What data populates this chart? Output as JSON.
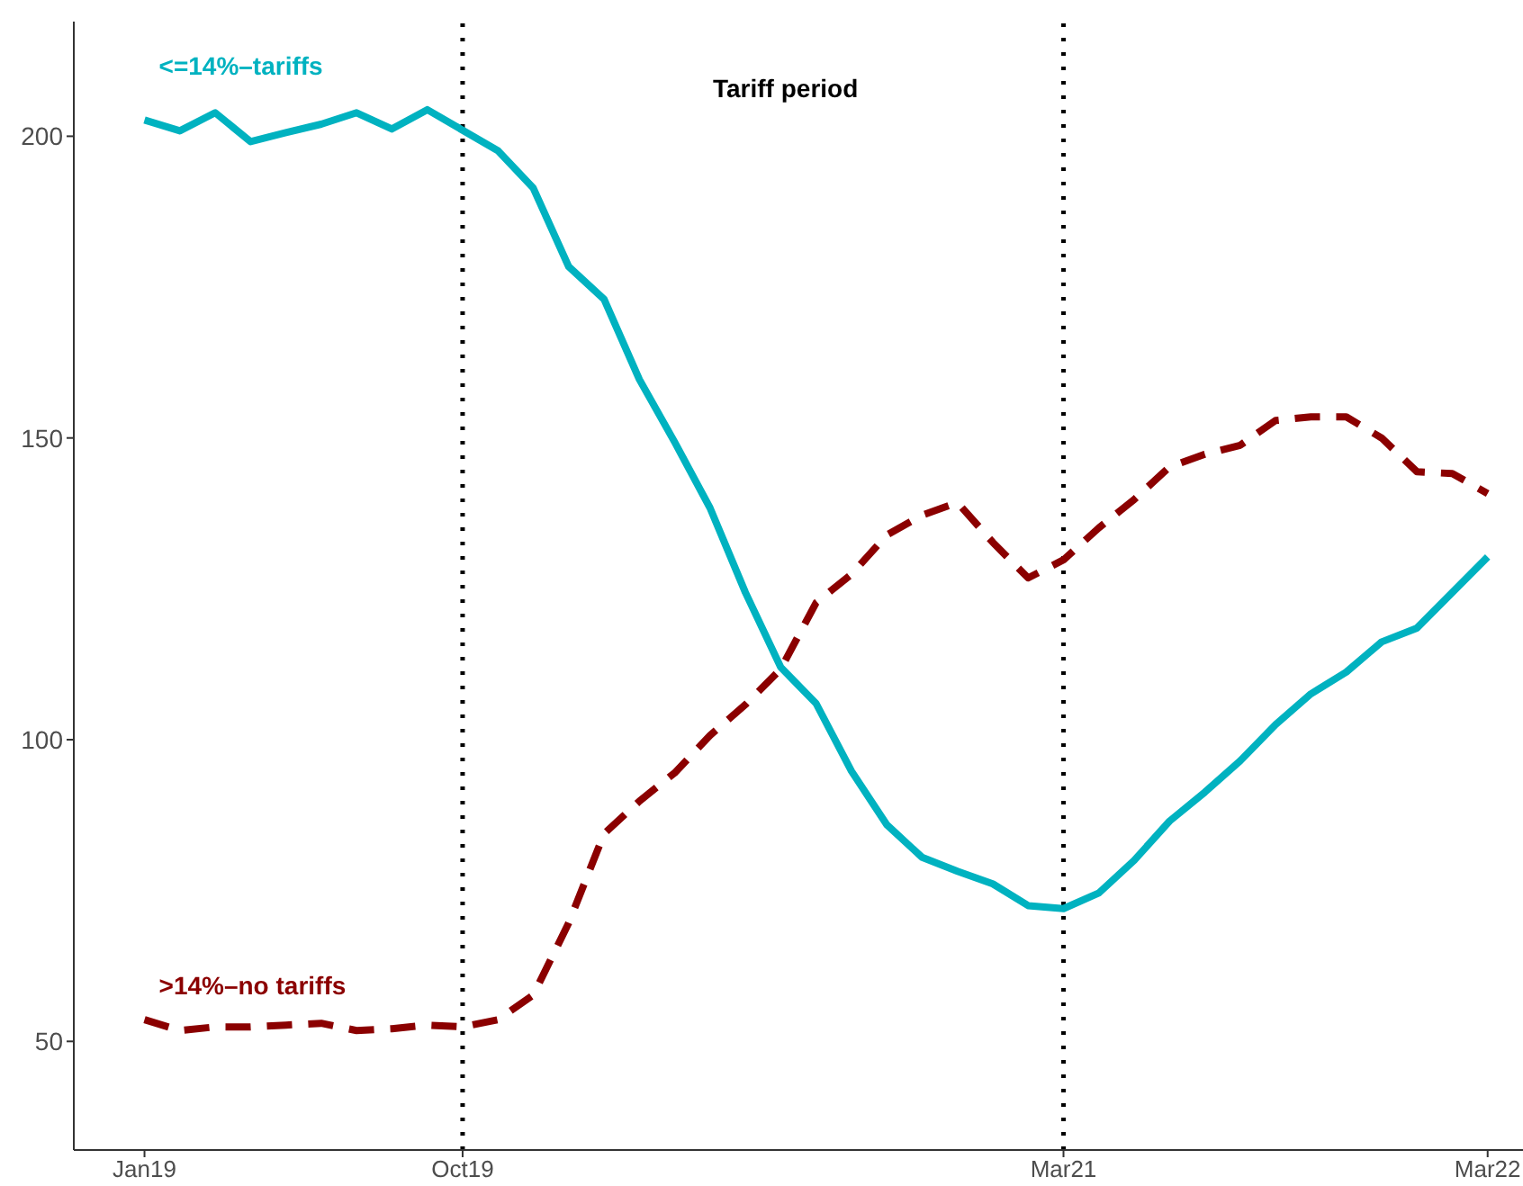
{
  "chart_data": {
    "type": "line",
    "x": [
      "2019-01",
      "2019-02",
      "2019-03",
      "2019-04",
      "2019-05",
      "2019-06",
      "2019-07",
      "2019-08",
      "2019-09",
      "2019-10",
      "2019-11",
      "2019-12",
      "2020-01",
      "2020-02",
      "2020-03",
      "2020-04",
      "2020-05",
      "2020-06",
      "2020-07",
      "2020-08",
      "2020-09",
      "2020-10",
      "2020-11",
      "2020-12",
      "2021-01",
      "2021-02",
      "2021-03",
      "2021-04",
      "2021-05",
      "2021-06",
      "2021-07",
      "2021-08",
      "2021-09",
      "2021-10",
      "2021-11",
      "2021-12",
      "2022-01",
      "2022-02",
      "2022-03"
    ],
    "series": [
      {
        "name": "<=14%–tariffs",
        "color": "#00b2c0",
        "line_style": "solid",
        "values": [
          202.7,
          200.9,
          203.9,
          199.1,
          200.6,
          202,
          203.9,
          201.2,
          204.4,
          201,
          197.6,
          191.4,
          178.4,
          173,
          159.7,
          149.3,
          138.4,
          124.4,
          112,
          106,
          94.8,
          85.9,
          80.5,
          78.2,
          76.1,
          72.5,
          72,
          74.6,
          80,
          86.5,
          91.3,
          96.5,
          102.5,
          107.6,
          111.2,
          116.2,
          118.5,
          124.4,
          130.3
        ]
      },
      {
        "name": ">14%–no tariffs",
        "color": "#8b0000",
        "line_style": "dashed",
        "values": [
          53.6,
          51.8,
          52.4,
          52.4,
          52.7,
          53,
          51.8,
          52.1,
          52.7,
          52.4,
          53.6,
          57.7,
          69.6,
          84.4,
          89.8,
          94.5,
          100.7,
          105.8,
          111.7,
          122.7,
          127.4,
          133.9,
          137.2,
          139.3,
          132.7,
          126.8,
          129.8,
          135.1,
          139.8,
          145.2,
          147.3,
          148.8,
          152.9,
          153.5,
          153.5,
          150,
          144.4,
          144.1,
          140.8
        ]
      }
    ],
    "xlim": [
      "2018-11",
      "2022-04"
    ],
    "xticks": [
      {
        "value": "2019-01",
        "label": "Jan19"
      },
      {
        "value": "2019-10",
        "label": "Oct19"
      },
      {
        "value": "2021-03",
        "label": "Mar21"
      },
      {
        "value": "2022-03",
        "label": "Mar22"
      }
    ],
    "ylim": [
      32,
      219
    ],
    "yticks": [
      50,
      100,
      150,
      200
    ],
    "ref_lines": [
      {
        "axis": "x",
        "value": "2019-10",
        "color": "#000000",
        "line_style": "dotted"
      },
      {
        "axis": "x",
        "value": "2021-03",
        "color": "#000000",
        "line_style": "dotted"
      }
    ],
    "annotations": [
      "Tariff period"
    ],
    "grid": false
  }
}
